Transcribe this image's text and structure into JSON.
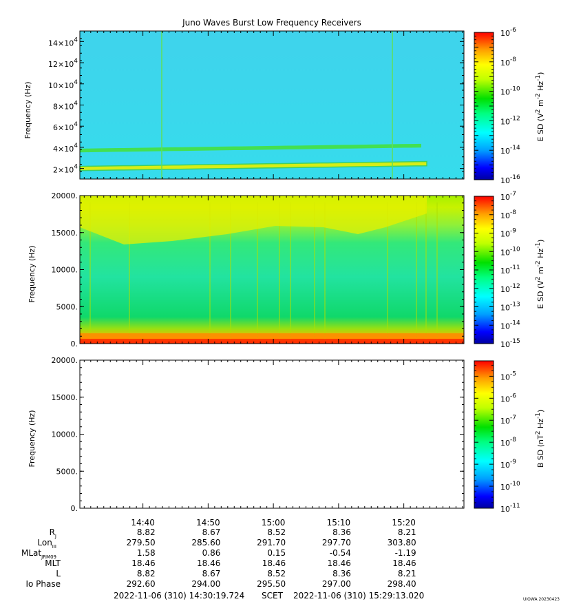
{
  "chart_data": {
    "type": "heatmap",
    "title": "Juno Waves Burst Low Frequency Receivers",
    "panels": [
      {
        "id": "efield-high",
        "ylabel": "Frequency (Hz)",
        "ylim": [
          10000,
          150000
        ],
        "yticks": [
          {
            "value": 20000,
            "mant": "2×10",
            "exp": "4"
          },
          {
            "value": 40000,
            "mant": "4×10",
            "exp": "4"
          },
          {
            "value": 60000,
            "mant": "6×10",
            "exp": "4"
          },
          {
            "value": 80000,
            "mant": "8×10",
            "exp": "4"
          },
          {
            "value": 100000,
            "mant": "10×10",
            "exp": "4"
          },
          {
            "value": 120000,
            "mant": "12×10",
            "exp": "4"
          },
          {
            "value": 140000,
            "mant": "14×10",
            "exp": "4"
          }
        ],
        "colorbar": {
          "label_parts": {
            "pre": "E SD (V",
            "e1": "2",
            "mid": " m",
            "e2": "-2",
            "mid2": " Hz",
            "e3": "-1",
            "post": ")"
          },
          "scale": "log",
          "range": [
            -16,
            -6
          ],
          "ticks": [
            {
              "value": -6,
              "label": "-6"
            },
            {
              "value": -8,
              "label": "-8"
            },
            {
              "value": -10,
              "label": "-10"
            },
            {
              "value": -12,
              "label": "-12"
            },
            {
              "value": -14,
              "label": "-14"
            },
            {
              "value": -16,
              "label": "-16"
            }
          ]
        },
        "features": [
          {
            "kind": "band",
            "freq": 20000,
            "width": 4000,
            "level": "yellow"
          },
          {
            "kind": "band",
            "freq": 37000,
            "width": 3500,
            "level": "green"
          }
        ]
      },
      {
        "id": "efield-low",
        "ylabel": "Frequency (Hz)",
        "ylim": [
          0,
          20000
        ],
        "yticks": [
          {
            "value": 0,
            "label": "0."
          },
          {
            "value": 5000,
            "label": "5000."
          },
          {
            "value": 10000,
            "label": "10000."
          },
          {
            "value": 15000,
            "label": "15000."
          },
          {
            "value": 20000,
            "label": "20000."
          }
        ],
        "colorbar": {
          "label_parts": {
            "pre": "E SD (V",
            "e1": "2",
            "mid": " m",
            "e2": "-2",
            "mid2": " Hz",
            "e3": "-1",
            "post": ")"
          },
          "scale": "log",
          "range": [
            -15,
            -7
          ],
          "ticks": [
            {
              "value": -7,
              "label": "-7"
            },
            {
              "value": -8,
              "label": "-8"
            },
            {
              "value": -9,
              "label": "-9"
            },
            {
              "value": -10,
              "label": "-10"
            },
            {
              "value": -11,
              "label": "-11"
            },
            {
              "value": -12,
              "label": "-12"
            },
            {
              "value": -13,
              "label": "-13"
            },
            {
              "value": -14,
              "label": "-14"
            },
            {
              "value": -15,
              "label": "-15"
            }
          ]
        }
      },
      {
        "id": "bfield",
        "ylabel": "Frequency (Hz)",
        "ylim": [
          0,
          20000
        ],
        "yticks": [
          {
            "value": 0,
            "label": "0."
          },
          {
            "value": 5000,
            "label": "5000."
          },
          {
            "value": 10000,
            "label": "10000."
          },
          {
            "value": 15000,
            "label": "15000."
          },
          {
            "value": 20000,
            "label": "20000."
          }
        ],
        "colorbar": {
          "label_parts": {
            "pre": "B SD (nT",
            "e1": "2",
            "mid": " Hz",
            "e2": "-1",
            "post": ")"
          },
          "scale": "log",
          "range": [
            -11,
            -4.3
          ],
          "ticks": [
            {
              "value": -5,
              "label": "-5"
            },
            {
              "value": -6,
              "label": "-6"
            },
            {
              "value": -7,
              "label": "-7"
            },
            {
              "value": -8,
              "label": "-8"
            },
            {
              "value": -9,
              "label": "-9"
            },
            {
              "value": -10,
              "label": "-10"
            },
            {
              "value": -11,
              "label": "-11"
            }
          ]
        }
      }
    ],
    "time_axis": {
      "start_min": 870.332,
      "end_min": 929.219,
      "major_ticks": [
        {
          "t": 880,
          "label": "14:40"
        },
        {
          "t": 890,
          "label": "14:50"
        },
        {
          "t": 900,
          "label": "15:00"
        },
        {
          "t": 910,
          "label": "15:10"
        },
        {
          "t": 920,
          "label": "15:20"
        }
      ]
    },
    "ephemeris": {
      "rows": [
        {
          "label": "R",
          "sub": "J",
          "values": [
            "8.82",
            "8.67",
            "8.52",
            "8.36",
            "8.21"
          ]
        },
        {
          "label": "Lon",
          "sub": "III",
          "values": [
            "279.50",
            "285.60",
            "291.70",
            "297.70",
            "303.80"
          ]
        },
        {
          "label": "MLat",
          "sub": "JRM09",
          "values": [
            "1.58",
            "0.86",
            "0.15",
            "-0.54",
            "-1.19"
          ]
        },
        {
          "label": "MLT",
          "sub": "",
          "values": [
            "18.46",
            "18.46",
            "18.46",
            "18.46",
            "18.46"
          ]
        },
        {
          "label": "L",
          "sub": "",
          "values": [
            "8.82",
            "8.67",
            "8.52",
            "8.36",
            "8.21"
          ]
        },
        {
          "label": "Io Phase",
          "sub": "",
          "values": [
            "292.60",
            "294.00",
            "295.50",
            "297.00",
            "298.40"
          ]
        }
      ]
    },
    "footer": {
      "start": "2022-11-06 (310) 14:30:19.724",
      "mid": "SCET",
      "end": "2022-11-06 (310) 15:29:13.020",
      "stamp": "UIOWA 20230423"
    }
  }
}
